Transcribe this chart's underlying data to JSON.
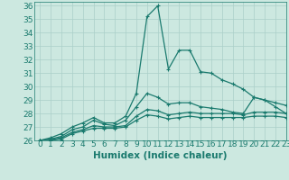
{
  "xlabel": "Humidex (Indice chaleur)",
  "bg_color": "#cce8e0",
  "line_color": "#1a7a6e",
  "grid_color": "#aacfc8",
  "xlim": [
    -0.5,
    23
  ],
  "ylim": [
    26,
    36.3
  ],
  "xticks": [
    0,
    1,
    2,
    3,
    4,
    5,
    6,
    7,
    8,
    9,
    10,
    11,
    12,
    13,
    14,
    15,
    16,
    17,
    18,
    19,
    20,
    21,
    22,
    23
  ],
  "yticks": [
    26,
    27,
    28,
    29,
    30,
    31,
    32,
    33,
    34,
    35,
    36
  ],
  "lines": [
    {
      "x": [
        0,
        1,
        2,
        3,
        4,
        5,
        6,
        7,
        8,
        9,
        10,
        11,
        12,
        13,
        14,
        15,
        16,
        17,
        18,
        19,
        20,
        21,
        22,
        23
      ],
      "y": [
        26,
        26.2,
        26.5,
        27.0,
        27.3,
        27.7,
        27.3,
        27.3,
        27.8,
        29.5,
        35.2,
        36.0,
        31.3,
        32.7,
        32.7,
        31.1,
        31.0,
        30.5,
        30.2,
        29.8,
        29.2,
        29.0,
        28.5,
        28.0
      ]
    },
    {
      "x": [
        0,
        1,
        2,
        3,
        4,
        5,
        6,
        7,
        8,
        9,
        10,
        11,
        12,
        13,
        14,
        15,
        16,
        17,
        18,
        19,
        20,
        21,
        22,
        23
      ],
      "y": [
        26,
        26.1,
        26.3,
        26.8,
        27.0,
        27.5,
        27.2,
        27.1,
        27.5,
        28.5,
        29.5,
        29.2,
        28.7,
        28.8,
        28.8,
        28.5,
        28.4,
        28.3,
        28.1,
        28.0,
        29.2,
        29.0,
        28.8,
        28.6
      ]
    },
    {
      "x": [
        0,
        1,
        2,
        3,
        4,
        5,
        6,
        7,
        8,
        9,
        10,
        11,
        12,
        13,
        14,
        15,
        16,
        17,
        18,
        19,
        20,
        21,
        22,
        23
      ],
      "y": [
        26,
        26.05,
        26.2,
        26.6,
        26.8,
        27.1,
        27.0,
        27.0,
        27.1,
        27.8,
        28.3,
        28.2,
        27.9,
        28.0,
        28.1,
        28.0,
        28.0,
        28.0,
        28.0,
        27.9,
        28.1,
        28.1,
        28.1,
        28.0
      ]
    },
    {
      "x": [
        0,
        1,
        2,
        3,
        4,
        5,
        6,
        7,
        8,
        9,
        10,
        11,
        12,
        13,
        14,
        15,
        16,
        17,
        18,
        19,
        20,
        21,
        22,
        23
      ],
      "y": [
        26,
        26.0,
        26.1,
        26.5,
        26.7,
        26.9,
        26.9,
        26.9,
        27.0,
        27.5,
        27.9,
        27.8,
        27.6,
        27.7,
        27.8,
        27.7,
        27.7,
        27.7,
        27.7,
        27.7,
        27.8,
        27.8,
        27.8,
        27.7
      ]
    }
  ],
  "marker": "+",
  "markersize": 3.5,
  "linewidth": 0.9,
  "font_size": 6.5,
  "xlabel_fontsize": 7.5
}
